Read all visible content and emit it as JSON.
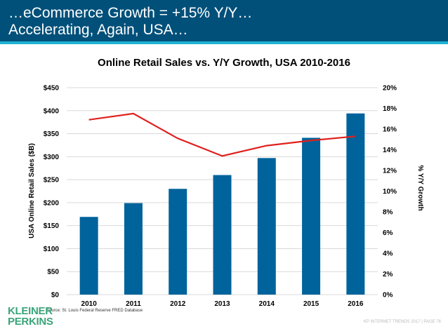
{
  "header": {
    "line1": "…eCommerce Growth = +15% Y/Y…",
    "line2": "Accelerating, Again, USA…"
  },
  "footer": {
    "source": "Source: St. Louis Federal Reserve FRED Database",
    "logo_line1": "KLEINER",
    "logo_line2": "PERKINS",
    "page": "KP INTERNET TRENDS 2017  |  PAGE 76"
  },
  "colors": {
    "header": "#00507a",
    "bar": "#00639b",
    "line": "#e0201d",
    "logo": "#3aa57a"
  },
  "chart_data": {
    "type": "bar+line",
    "title": "Online Retail Sales vs. Y/Y Growth, USA 2010-2016",
    "categories": [
      "2010",
      "2011",
      "2012",
      "2013",
      "2014",
      "2015",
      "2016"
    ],
    "ylabel": "USA Online Retail Sales ($B)",
    "y2label": "% Y/Y Growth",
    "ylim": [
      0,
      450
    ],
    "y2lim": [
      0,
      20
    ],
    "yticks": [
      "$0",
      "$50",
      "$100",
      "$150",
      "$200",
      "$250",
      "$300",
      "$350",
      "$400",
      "$450"
    ],
    "y2ticks": [
      "0%",
      "2%",
      "4%",
      "6%",
      "8%",
      "10%",
      "12%",
      "14%",
      "16%",
      "18%",
      "20%"
    ],
    "grid": true,
    "series": [
      {
        "type": "bar",
        "axis": "left",
        "values": [
          169,
          199,
          230,
          260,
          297,
          341,
          394
        ]
      },
      {
        "type": "line",
        "axis": "right",
        "values": [
          16.9,
          17.5,
          15.1,
          13.4,
          14.4,
          14.9,
          15.3
        ]
      }
    ]
  }
}
